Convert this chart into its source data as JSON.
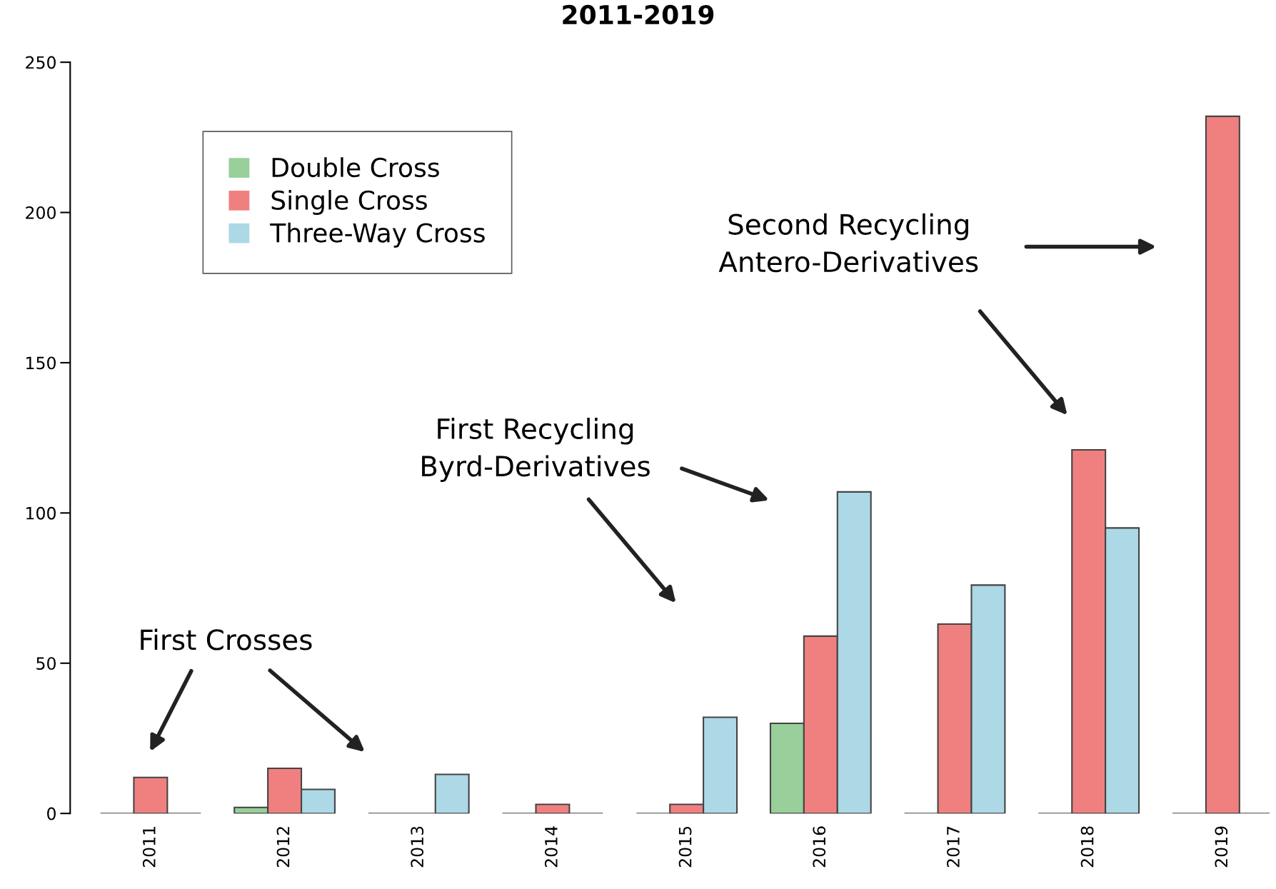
{
  "chart_data": {
    "type": "bar",
    "title": "2011-2019",
    "categories": [
      "2011",
      "2012",
      "2013",
      "2014",
      "2015",
      "2016",
      "2017",
      "2018",
      "2019"
    ],
    "series": [
      {
        "name": "Double Cross",
        "color": "#98cf9a",
        "values": [
          0,
          2,
          0,
          0,
          0,
          30,
          0,
          0,
          0
        ]
      },
      {
        "name": "Single Cross",
        "color": "#f08080",
        "values": [
          12,
          15,
          0,
          3,
          3,
          59,
          63,
          121,
          232
        ]
      },
      {
        "name": "Three-Way Cross",
        "color": "#add8e6",
        "values": [
          0,
          8,
          13,
          0,
          32,
          107,
          76,
          95,
          0
        ]
      }
    ],
    "ylim": [
      0,
      250
    ],
    "yticks": [
      0,
      50,
      100,
      150,
      200,
      250
    ],
    "grid": false,
    "legend": "top left",
    "annotations": [
      "First Crosses",
      "First Recycling\nByrd-Derivatives",
      "Second Recycling\nAntero-Derivatives"
    ]
  }
}
